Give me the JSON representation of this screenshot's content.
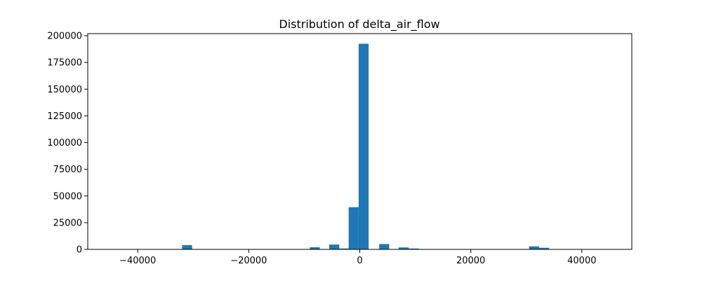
{
  "chart_data": {
    "type": "bar",
    "title": "Distribution of delta_air_flow",
    "xlabel": "",
    "ylabel": "",
    "xlim": [
      -49000,
      49000
    ],
    "ylim": [
      0,
      202000
    ],
    "x_ticks": [
      -40000,
      -20000,
      0,
      20000,
      40000
    ],
    "x_tick_labels": [
      "−40000",
      "−20000",
      "0",
      "20000",
      "40000"
    ],
    "y_ticks": [
      0,
      25000,
      50000,
      75000,
      100000,
      125000,
      150000,
      175000,
      200000
    ],
    "y_tick_labels": [
      "0",
      "25000",
      "50000",
      "75000",
      "100000",
      "125000",
      "150000",
      "175000",
      "200000"
    ],
    "bin_width": 1800,
    "bins": [
      {
        "x0": -32000,
        "value": 4000
      },
      {
        "x0": -9000,
        "value": 2000
      },
      {
        "x0": -5500,
        "value": 4500
      },
      {
        "x0": -3700,
        "value": 800
      },
      {
        "x0": -2000,
        "value": 39500
      },
      {
        "x0": -200,
        "value": 192500
      },
      {
        "x0": 3500,
        "value": 5000
      },
      {
        "x0": 7000,
        "value": 1800
      },
      {
        "x0": 8800,
        "value": 800
      },
      {
        "x0": 30500,
        "value": 2800
      },
      {
        "x0": 32300,
        "value": 1500
      }
    ],
    "color": "#1f77b4",
    "grid": false,
    "legend": "none"
  }
}
